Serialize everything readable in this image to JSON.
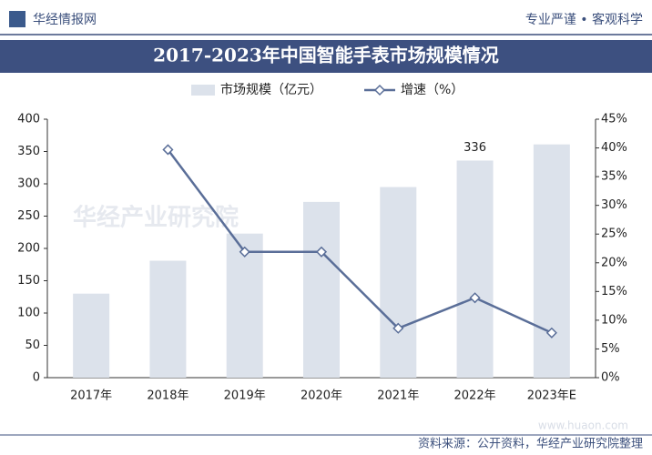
{
  "header": {
    "brand": "华经情报网",
    "slogan": "专业严谨 • 客观科学"
  },
  "chart_data": {
    "type": "bar_line",
    "title": "2017-2023年中国智能手表市场规模情况",
    "categories": [
      "2017年",
      "2018年",
      "2019年",
      "2020年",
      "2021年",
      "2022年",
      "2023年E"
    ],
    "series": [
      {
        "name": "市场规模（亿元）",
        "type": "bar",
        "color": "#dce2eb",
        "axis": "y",
        "values": [
          130,
          181,
          223,
          272,
          295,
          336,
          361
        ],
        "value_labels": [
          null,
          null,
          null,
          null,
          null,
          "336",
          null
        ]
      },
      {
        "name": "增速（%）",
        "type": "line",
        "color": "#5a6e98",
        "axis": "y2",
        "values": [
          null,
          39.7,
          21.9,
          21.9,
          8.6,
          13.9,
          7.8
        ]
      }
    ],
    "ylim": [
      0,
      400
    ],
    "yticks": [
      0,
      50,
      100,
      150,
      200,
      250,
      300,
      350,
      400
    ],
    "y2lim": [
      0,
      45
    ],
    "y2ticks": [
      {
        "value": 0,
        "label": "0%"
      },
      {
        "value": 5,
        "label": "5%"
      },
      {
        "value": 10,
        "label": "10%"
      },
      {
        "value": 15,
        "label": "15%"
      },
      {
        "value": 20,
        "label": "20%"
      },
      {
        "value": 25,
        "label": "25%"
      },
      {
        "value": 30,
        "label": "30%"
      },
      {
        "value": 35,
        "label": "35%"
      },
      {
        "value": 40,
        "label": "40%"
      },
      {
        "value": 45,
        "label": "45%"
      }
    ],
    "source": "资料来源：公开资料，华经产业研究院整理",
    "watermark": "华经产业研究院",
    "website": "www.huaon.com"
  }
}
